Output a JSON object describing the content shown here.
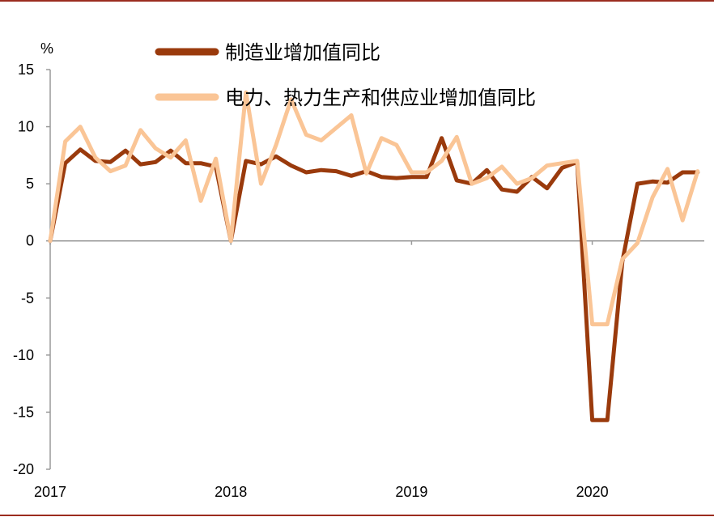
{
  "chart_data": {
    "type": "line",
    "title": "",
    "ylabel": "%",
    "xlabel": "",
    "ylim": [
      -20,
      15
    ],
    "yticks": [
      15,
      10,
      5,
      0,
      -5,
      -10,
      -15,
      -20
    ],
    "ytick_labels": [
      "15",
      "10",
      "5",
      "0",
      "-5",
      "-10",
      "-15",
      "-20"
    ],
    "xticks": [
      0,
      12,
      24,
      36
    ],
    "xtick_labels": [
      "2017",
      "2018",
      "2019",
      "2020"
    ],
    "legend_position": "top",
    "series": [
      {
        "name": "制造业增加值同比",
        "color": "#9a3a0c",
        "values": [
          0,
          6.8,
          8.0,
          7.0,
          6.9,
          7.9,
          6.7,
          6.9,
          7.9,
          6.8,
          6.8,
          6.5,
          0,
          7.0,
          6.7,
          7.4,
          6.6,
          6.0,
          6.2,
          6.1,
          5.7,
          6.1,
          5.6,
          5.5,
          5.6,
          5.6,
          9.0,
          5.3,
          5.0,
          6.2,
          4.5,
          4.3,
          5.6,
          4.6,
          6.4,
          6.9,
          -15.7,
          -15.7,
          -1.8,
          5.0,
          5.2,
          5.1,
          6.0,
          6.0
        ]
      },
      {
        "name": "电力、热力生产和供应业增加值同比",
        "color": "#fac596",
        "values": [
          0,
          8.7,
          10.0,
          7.3,
          6.1,
          6.6,
          9.7,
          8.1,
          7.3,
          8.8,
          3.5,
          7.2,
          0,
          13.0,
          5.0,
          8.4,
          12.4,
          9.3,
          8.8,
          9.9,
          11.0,
          5.9,
          9.0,
          8.4,
          6.0,
          6.0,
          7.0,
          9.1,
          5.0,
          5.5,
          6.5,
          5.0,
          5.5,
          6.6,
          6.8,
          7.0,
          -7.3,
          -7.3,
          -1.6,
          -0.2,
          3.8,
          6.3,
          1.8,
          6.1
        ]
      }
    ]
  }
}
